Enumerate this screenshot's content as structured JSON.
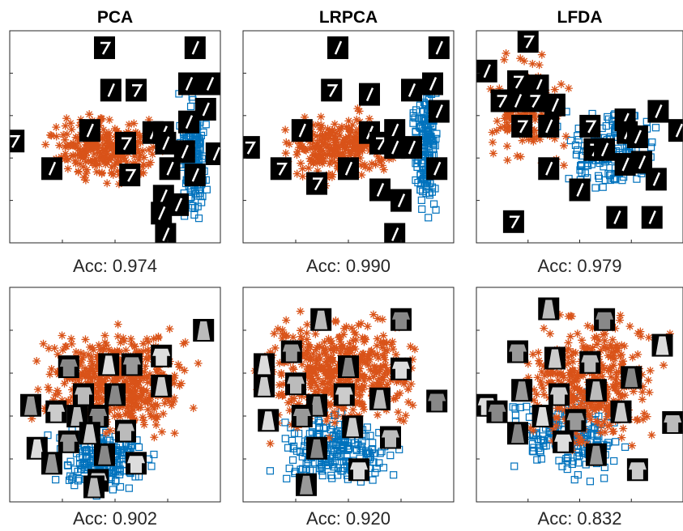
{
  "top_panels": [
    {
      "title": "PCA",
      "caption": "Acc: 0.974"
    },
    {
      "title": "LRPCA",
      "caption": "Acc: 0.990"
    },
    {
      "title": "LFDA",
      "caption": "Acc: 0.979"
    }
  ],
  "bottom_panels": [
    {
      "caption": "Acc: 0.902"
    },
    {
      "caption": "Acc: 0.920"
    },
    {
      "caption": "Acc: 0.832"
    }
  ]
}
